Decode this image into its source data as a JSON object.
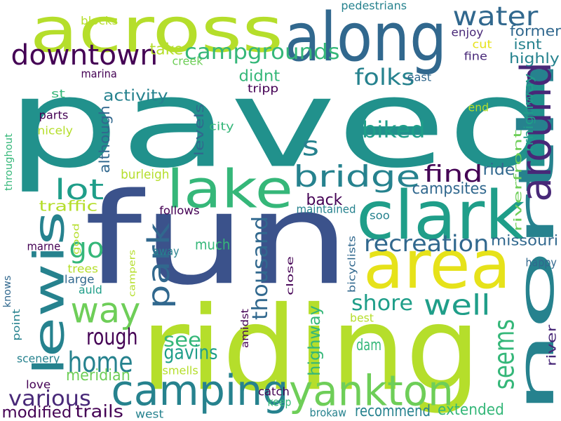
{
  "palette": {
    "dark_purple": "#440154",
    "indigo": "#3b528b",
    "slate_blue": "#31688e",
    "teal_blue": "#26828e",
    "teal": "#1f9e89",
    "green": "#35b779",
    "light_green": "#6ece58",
    "yellow_green": "#b5de2b",
    "yellow": "#e6e21a"
  },
  "words": [
    {
      "text": "paved",
      "color": "#21918c",
      "rotate": false
    },
    {
      "text": "fun",
      "color": "#3b528b",
      "rotate": false
    },
    {
      "text": "riding",
      "color": "#b5de2b",
      "rotate": false
    },
    {
      "text": "across",
      "color": "#b5de2b",
      "rotate": false
    },
    {
      "text": "along",
      "color": "#31688e",
      "rotate": false
    },
    {
      "text": "clark",
      "color": "#1f9e89",
      "rotate": false
    },
    {
      "text": "lake",
      "color": "#35b779",
      "rotate": false
    },
    {
      "text": "area",
      "color": "#e6e21a",
      "rotate": false
    },
    {
      "text": "north",
      "color": "#26828e",
      "rotate": true
    },
    {
      "text": "lewis",
      "color": "#26828e",
      "rotate": true
    },
    {
      "text": "yankton",
      "color": "#6ece58",
      "rotate": false
    },
    {
      "text": "camping",
      "color": "#26828e",
      "rotate": false
    },
    {
      "text": "downtown",
      "color": "#440154",
      "rotate": false
    },
    {
      "text": "around",
      "color": "#482878",
      "rotate": true
    },
    {
      "text": "water",
      "color": "#31688e",
      "rotate": false
    },
    {
      "text": "way",
      "color": "#6ece58",
      "rotate": false
    },
    {
      "text": "park",
      "color": "#31688e",
      "rotate": true
    },
    {
      "text": "bridge",
      "color": "#26828e",
      "rotate": false
    },
    {
      "text": "well",
      "color": "#1f9e89",
      "rotate": false
    },
    {
      "text": "home",
      "color": "#26828e",
      "rotate": false
    },
    {
      "text": "lot",
      "color": "#1f9e89",
      "rotate": false
    },
    {
      "text": "go",
      "color": "#35b779",
      "rotate": false
    },
    {
      "text": "s",
      "color": "#26828e",
      "rotate": false
    },
    {
      "text": "find",
      "color": "#440154",
      "rotate": false
    },
    {
      "text": "recreation",
      "color": "#31688e",
      "rotate": false
    },
    {
      "text": "campgrounds",
      "color": "#35b779",
      "rotate": false
    },
    {
      "text": "folks",
      "color": "#26828e",
      "rotate": false
    },
    {
      "text": "biked",
      "color": "#1f9e89",
      "rotate": false
    },
    {
      "text": "shore",
      "color": "#1f9e89",
      "rotate": false
    },
    {
      "text": "thousand",
      "color": "#31688e",
      "rotate": true
    },
    {
      "text": "rough",
      "color": "#440154",
      "rotate": false
    },
    {
      "text": "seems",
      "color": "#35b779",
      "rotate": true
    },
    {
      "text": "various",
      "color": "#482878",
      "rotate": false
    },
    {
      "text": "see",
      "color": "#35b779",
      "rotate": false
    },
    {
      "text": "gavins",
      "color": "#1f9e89",
      "rotate": false
    },
    {
      "text": "trails",
      "color": "#440154",
      "rotate": false
    },
    {
      "text": "recommend",
      "color": "#26828e",
      "rotate": false
    },
    {
      "text": "extended",
      "color": "#35b779",
      "rotate": false
    },
    {
      "text": "modified",
      "color": "#440154",
      "rotate": false
    },
    {
      "text": "meridian",
      "color": "#6ece58",
      "rotate": false
    },
    {
      "text": "much",
      "color": "#35b779",
      "rotate": false
    },
    {
      "text": "back",
      "color": "#440154",
      "rotate": false
    },
    {
      "text": "missouri",
      "color": "#31688e",
      "rotate": false
    },
    {
      "text": "ride",
      "color": "#31688e",
      "rotate": false
    },
    {
      "text": "campsites",
      "color": "#31688e",
      "rotate": false
    },
    {
      "text": "dam",
      "color": "#35b779",
      "rotate": false
    },
    {
      "text": "highway",
      "color": "#35b779",
      "rotate": true
    },
    {
      "text": "riverfront",
      "color": "#6ece58",
      "rotate": true
    },
    {
      "text": "rrhighway",
      "color": "#1f9e89",
      "rotate": true
    },
    {
      "text": "river",
      "color": "#482878",
      "rotate": true
    },
    {
      "text": "former",
      "color": "#31688e",
      "rotate": false
    },
    {
      "text": "isnt",
      "color": "#26828e",
      "rotate": false
    },
    {
      "text": "highly",
      "color": "#26828e",
      "rotate": false
    },
    {
      "text": "take",
      "color": "#b5de2b",
      "rotate": false
    },
    {
      "text": "didnt",
      "color": "#35b779",
      "rotate": false
    },
    {
      "text": "activity",
      "color": "#26828e",
      "rotate": false
    },
    {
      "text": "although",
      "color": "#31688e",
      "rotate": true
    },
    {
      "text": "levels",
      "color": "#31688e",
      "rotate": true
    },
    {
      "text": "traffic",
      "color": "#b5de2b",
      "rotate": false
    },
    {
      "text": "burleigh",
      "color": "#b5de2b",
      "rotate": false
    },
    {
      "text": "happy",
      "color": "#31688e",
      "rotate": false
    },
    {
      "text": "pedestrians",
      "color": "#26828e",
      "rotate": false
    },
    {
      "text": "blocks",
      "color": "#b5de2b",
      "rotate": false
    },
    {
      "text": "enjoy",
      "color": "#482878",
      "rotate": false
    },
    {
      "text": "cut",
      "color": "#e6e21a",
      "rotate": false
    },
    {
      "text": "fine",
      "color": "#482878",
      "rotate": false
    },
    {
      "text": "creek",
      "color": "#6ece58",
      "rotate": false
    },
    {
      "text": "marina",
      "color": "#440154",
      "rotate": false
    },
    {
      "text": "tripp",
      "color": "#440154",
      "rotate": false
    },
    {
      "text": "east",
      "color": "#31688e",
      "rotate": false
    },
    {
      "text": "st",
      "color": "#35b779",
      "rotate": false
    },
    {
      "text": "parts",
      "color": "#440154",
      "rotate": false
    },
    {
      "text": "nicely",
      "color": "#b5de2b",
      "rotate": false
    },
    {
      "text": "end",
      "color": "#b5de2b",
      "rotate": false
    },
    {
      "text": "city",
      "color": "#35b779",
      "rotate": false
    },
    {
      "text": "throughout",
      "color": "#35b779",
      "rotate": true
    },
    {
      "text": "follows",
      "color": "#440154",
      "rotate": false
    },
    {
      "text": "maintained",
      "color": "#26828e",
      "rotate": false
    },
    {
      "text": "soo",
      "color": "#26828e",
      "rotate": false
    },
    {
      "text": "good",
      "color": "#b5de2b",
      "rotate": true
    },
    {
      "text": "bicyclists",
      "color": "#31688e",
      "rotate": true
    },
    {
      "text": "marne",
      "color": "#440154",
      "rotate": false
    },
    {
      "text": "away",
      "color": "#26828e",
      "rotate": false
    },
    {
      "text": "trees",
      "color": "#b5de2b",
      "rotate": false
    },
    {
      "text": "large",
      "color": "#31688e",
      "rotate": false
    },
    {
      "text": "auld",
      "color": "#1f9e89",
      "rotate": false
    },
    {
      "text": "campers",
      "color": "#b5de2b",
      "rotate": true
    },
    {
      "text": "close",
      "color": "#440154",
      "rotate": true
    },
    {
      "text": "knows",
      "color": "#31688e",
      "rotate": true
    },
    {
      "text": "point",
      "color": "#26828e",
      "rotate": true
    },
    {
      "text": "amidst",
      "color": "#440154",
      "rotate": true
    },
    {
      "text": "best",
      "color": "#b5de2b",
      "rotate": false
    },
    {
      "text": "scenery",
      "color": "#26828e",
      "rotate": false
    },
    {
      "text": "smells",
      "color": "#b5de2b",
      "rotate": false
    },
    {
      "text": "love",
      "color": "#440154",
      "rotate": false
    },
    {
      "text": "catch",
      "color": "#440154",
      "rotate": false
    },
    {
      "text": "keep",
      "color": "#35b779",
      "rotate": false
    },
    {
      "text": "brokaw",
      "color": "#26828e",
      "rotate": false
    },
    {
      "text": "west",
      "color": "#26828e",
      "rotate": false
    }
  ]
}
